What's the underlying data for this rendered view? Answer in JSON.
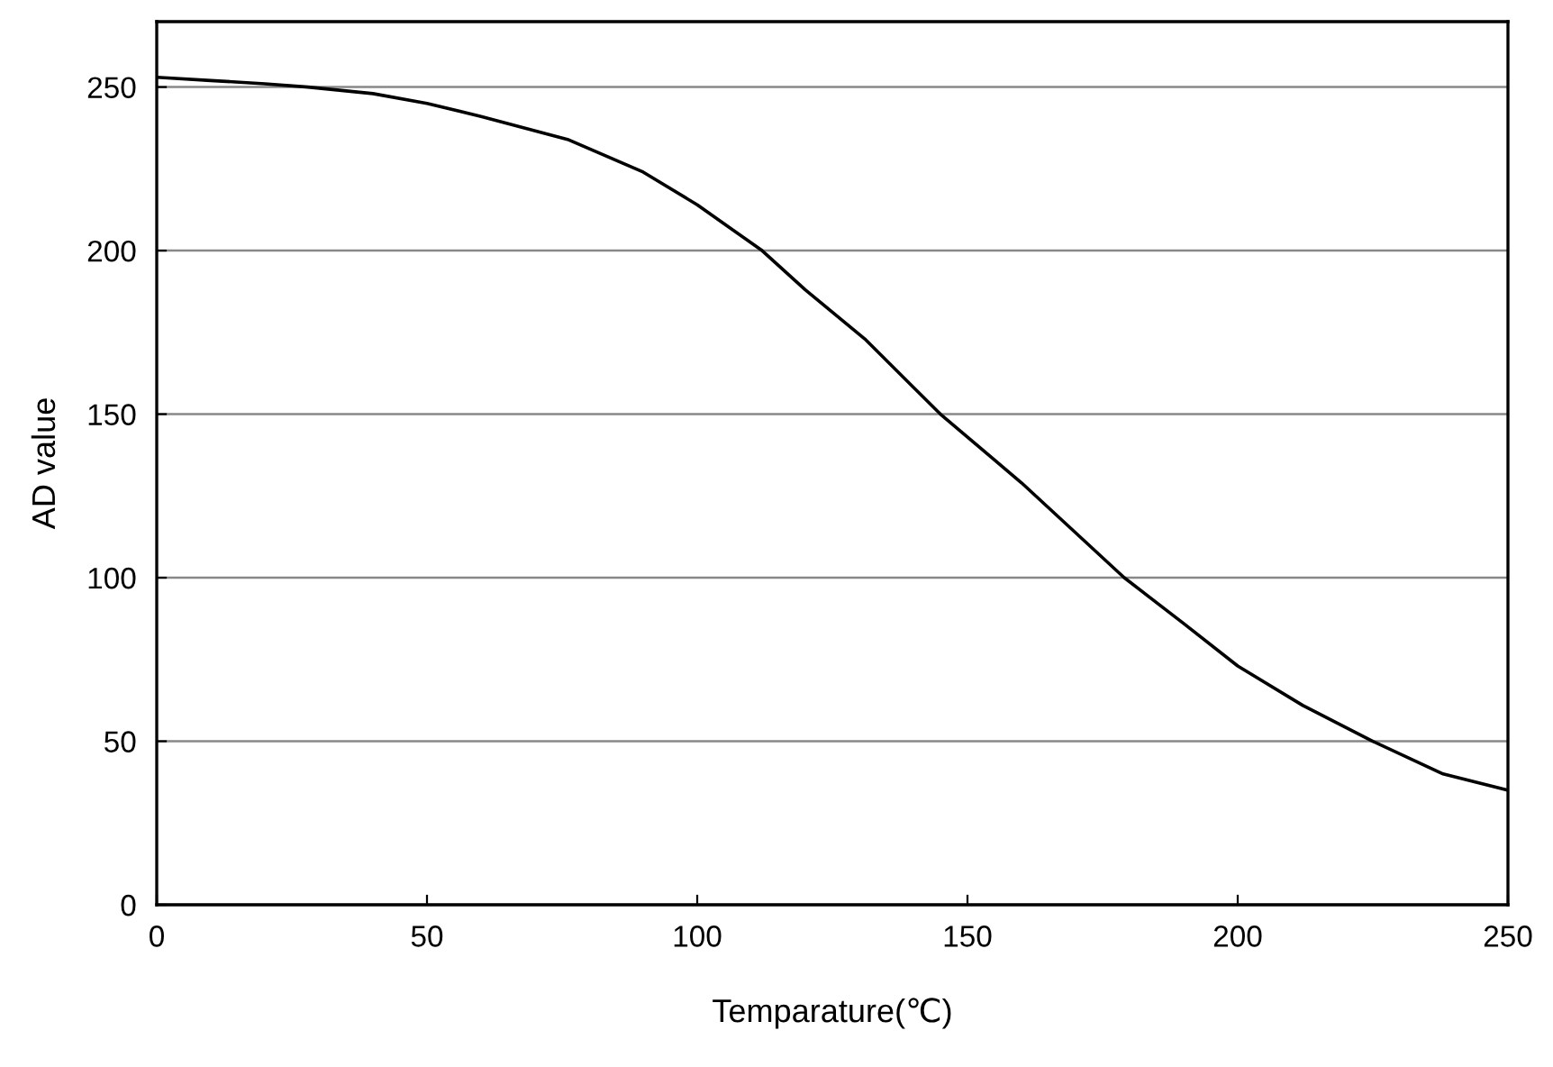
{
  "chart_data": {
    "type": "line",
    "xlabel": "Temparature(℃)",
    "ylabel": "AD value",
    "x": [
      0,
      10,
      20,
      28,
      40,
      50,
      60,
      76,
      90,
      100,
      112,
      120,
      131,
      145,
      160,
      179,
      190,
      200,
      212,
      225,
      238,
      250
    ],
    "series": [
      {
        "color": "#000000",
        "values": [
          253,
          252,
          251,
          250,
          248,
          245,
          241,
          234,
          224,
          214,
          200,
          188,
          173,
          150,
          129,
          100,
          86,
          73,
          61,
          50,
          40,
          35
        ]
      }
    ],
    "xlim": [
      0,
      250
    ],
    "ylim": [
      0,
      270
    ],
    "xticks": [
      0,
      50,
      100,
      150,
      200,
      250
    ],
    "yticks": [
      0,
      50,
      100,
      150,
      200,
      250
    ],
    "grid": "y",
    "marker": "none",
    "line_style": "solid",
    "legend": false
  }
}
